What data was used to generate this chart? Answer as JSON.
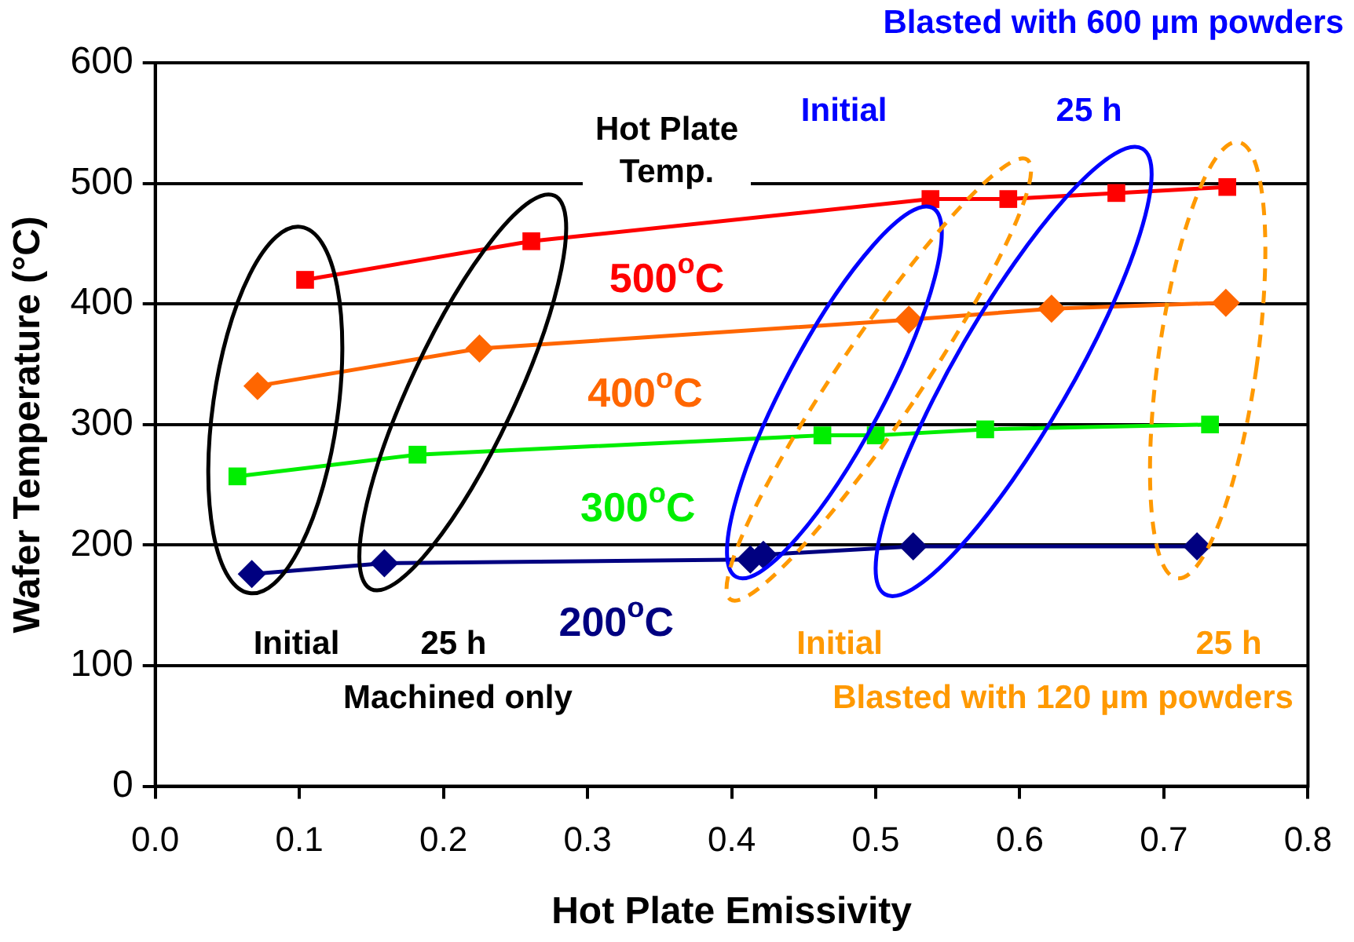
{
  "chart_data": {
    "type": "line",
    "xlabel": "Hot Plate Emissivity",
    "ylabel": "Wafer Temperature (°C)",
    "xlim": [
      0,
      0.8
    ],
    "xticks": [
      {
        "value": 0,
        "label": "0.0"
      },
      0.1,
      0.2,
      0.3,
      0.4,
      0.5,
      0.6,
      0.7,
      0.8
    ],
    "ylim": [
      0,
      600
    ],
    "yticks": [
      0,
      100,
      200,
      300,
      400,
      500,
      600
    ],
    "grid": "y",
    "legend": false,
    "series": [
      {
        "name": "500$^{o}$C",
        "color": "#ff0000",
        "marker": "square",
        "x": [
          0.104,
          0.261,
          0.538,
          0.592,
          0.667,
          0.744
        ],
        "values": [
          420,
          452,
          487,
          487,
          492,
          497
        ]
      },
      {
        "name": "400$^{o}$C",
        "color": "#ff6600",
        "marker": "diamond",
        "x": [
          0.071,
          0.225,
          0.523,
          0.622,
          0.743
        ],
        "values": [
          332,
          363,
          387,
          396,
          401
        ]
      },
      {
        "name": "300$^{o}$C",
        "color": "#00ee00",
        "marker": "square",
        "x": [
          0.057,
          0.182,
          0.463,
          0.5,
          0.576,
          0.732
        ],
        "values": [
          257,
          275,
          291,
          291,
          296,
          300
        ]
      },
      {
        "name": "200$^{o}$C",
        "color": "#000080",
        "marker": "diamond",
        "x": [
          0.067,
          0.159,
          0.413,
          0.422,
          0.526,
          0.723
        ],
        "values": [
          176,
          185,
          188,
          192,
          199,
          199
        ]
      }
    ],
    "annotations": [
      "Hot Plate Temp.",
      "Initial",
      "25 h",
      "Machined only",
      "Blasted with 600 µm powders",
      "Initial",
      "25 h",
      "Initial",
      "25 h",
      "Blasted with 120 µm powders"
    ]
  }
}
